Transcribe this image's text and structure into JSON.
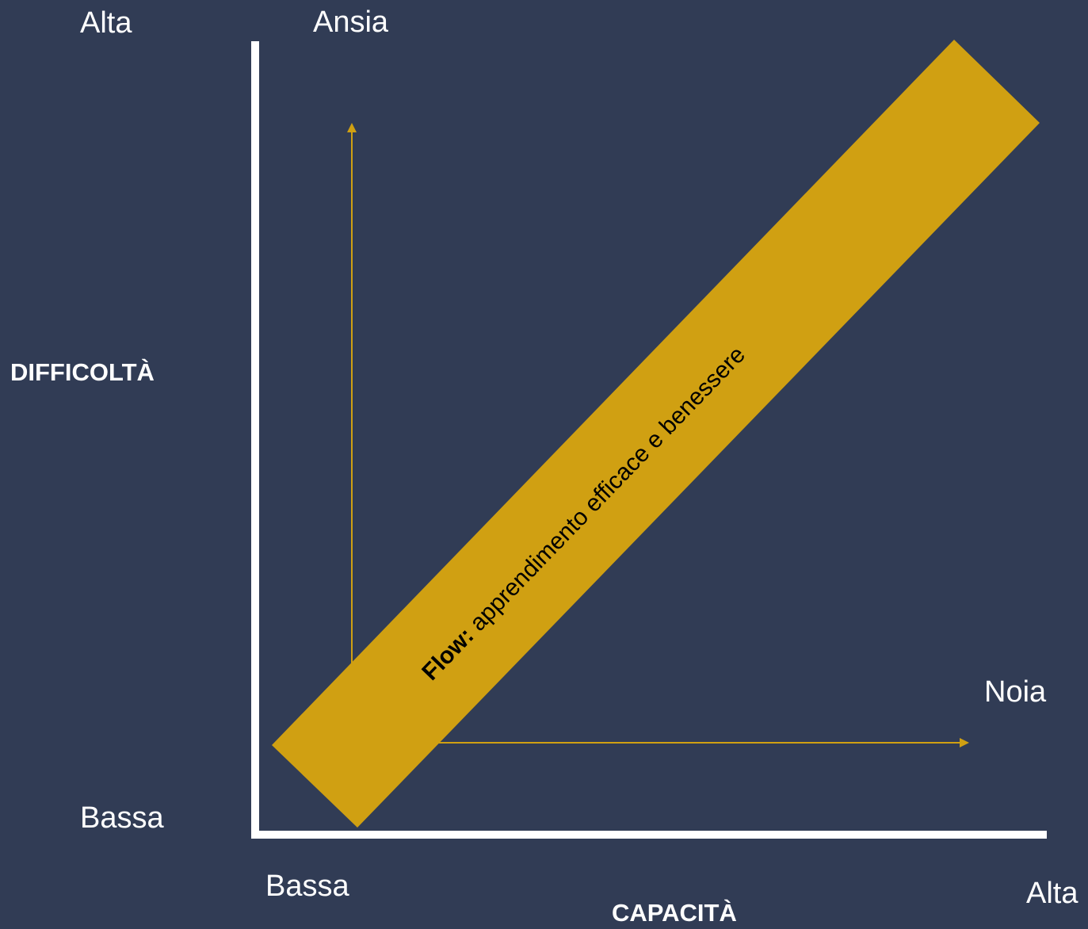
{
  "colors": {
    "background": "#313c55",
    "axis": "#ffffff",
    "band": "#d0a012",
    "arrow": "#d0a012",
    "text": "#ffffff",
    "band_text": "#000000"
  },
  "y_axis": {
    "title": "DIFFICOLTÀ",
    "high": "Alta",
    "low": "Bassa"
  },
  "x_axis": {
    "title": "CAPACITÀ",
    "low": "Bassa",
    "high": "Alta"
  },
  "zones": {
    "anxiety": "Ansia",
    "boredom": "Noia"
  },
  "flow_band": {
    "label_bold": "Flow:",
    "label_rest": " apprendimento efficace e benessere"
  }
}
